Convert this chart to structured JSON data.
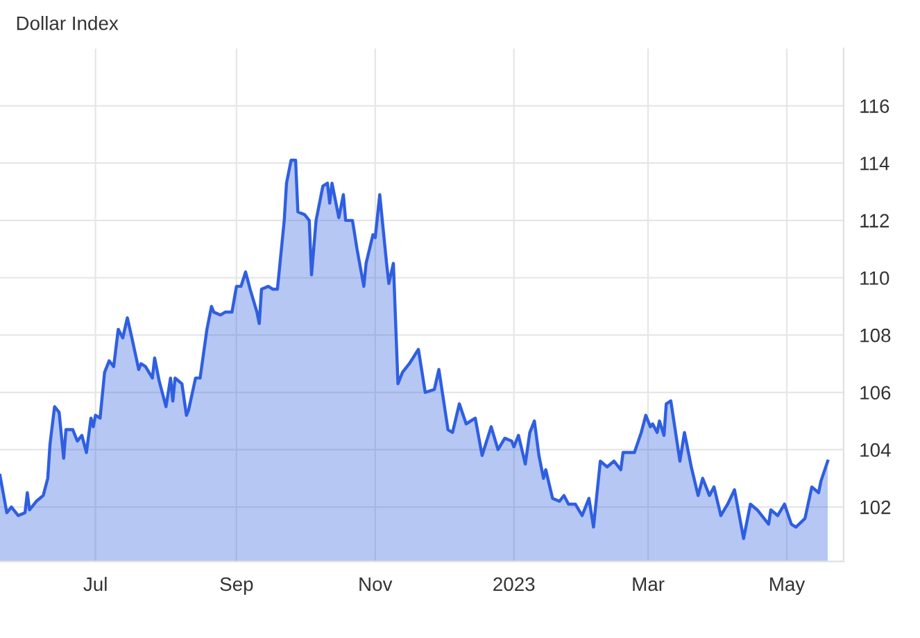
{
  "chart_data": {
    "type": "area",
    "title": "Dollar Index",
    "x": [
      "2022-05-20",
      "2022-05-23",
      "2022-05-25",
      "2022-05-28",
      "2022-05-31",
      "2022-06-01",
      "2022-06-02",
      "2022-06-05",
      "2022-06-08",
      "2022-06-10",
      "2022-06-11",
      "2022-06-13",
      "2022-06-15",
      "2022-06-17",
      "2022-06-18",
      "2022-06-21",
      "2022-06-23",
      "2022-06-25",
      "2022-06-27",
      "2022-06-29",
      "2022-06-30",
      "2022-07-01",
      "2022-07-03",
      "2022-07-05",
      "2022-07-07",
      "2022-07-09",
      "2022-07-11",
      "2022-07-13",
      "2022-07-15",
      "2022-07-17",
      "2022-07-20",
      "2022-07-21",
      "2022-07-23",
      "2022-07-26",
      "2022-07-27",
      "2022-07-29",
      "2022-08-01",
      "2022-08-03",
      "2022-08-04",
      "2022-08-05",
      "2022-08-08",
      "2022-08-10",
      "2022-08-11",
      "2022-08-14",
      "2022-08-16",
      "2022-08-19",
      "2022-08-21",
      "2022-08-22",
      "2022-08-25",
      "2022-08-27",
      "2022-08-30",
      "2022-09-01",
      "2022-09-03",
      "2022-09-05",
      "2022-09-07",
      "2022-09-10",
      "2022-09-11",
      "2022-09-12",
      "2022-09-15",
      "2022-09-17",
      "2022-09-19",
      "2022-09-20",
      "2022-09-22",
      "2022-09-23",
      "2022-09-25",
      "2022-09-27",
      "2022-09-28",
      "2022-10-01",
      "2022-10-03",
      "2022-10-04",
      "2022-10-06",
      "2022-10-09",
      "2022-10-11",
      "2022-10-12",
      "2022-10-13",
      "2022-10-16",
      "2022-10-18",
      "2022-10-19",
      "2022-10-22",
      "2022-10-24",
      "2022-10-27",
      "2022-10-28",
      "2022-10-31",
      "2022-11-01",
      "2022-11-03",
      "2022-11-06",
      "2022-11-07",
      "2022-11-09",
      "2022-11-11",
      "2022-11-13",
      "2022-11-16",
      "2022-11-20",
      "2022-11-23",
      "2022-11-27",
      "2022-11-29",
      "2022-12-03",
      "2022-12-05",
      "2022-12-08",
      "2022-12-11",
      "2022-12-15",
      "2022-12-18",
      "2022-12-22",
      "2022-12-25",
      "2022-12-28",
      "2022-12-31",
      "2023-01-01",
      "2023-01-03",
      "2023-01-06",
      "2023-01-08",
      "2023-01-10",
      "2023-01-12",
      "2023-01-14",
      "2023-01-15",
      "2023-01-18",
      "2023-01-21",
      "2023-01-23",
      "2023-01-25",
      "2023-01-28",
      "2023-01-31",
      "2023-02-03",
      "2023-02-05",
      "2023-02-08",
      "2023-02-11",
      "2023-02-14",
      "2023-02-17",
      "2023-02-18",
      "2023-02-23",
      "2023-02-26",
      "2023-02-28",
      "2023-03-02",
      "2023-03-03",
      "2023-03-05",
      "2023-03-06",
      "2023-03-08",
      "2023-03-09",
      "2023-03-11",
      "2023-03-15",
      "2023-03-17",
      "2023-03-20",
      "2023-03-23",
      "2023-03-25",
      "2023-03-28",
      "2023-03-30",
      "2023-04-02",
      "2023-04-05",
      "2023-04-08",
      "2023-04-12",
      "2023-04-15",
      "2023-04-18",
      "2023-04-23",
      "2023-04-24",
      "2023-04-27",
      "2023-04-30",
      "2023-05-03",
      "2023-05-05",
      "2023-05-09",
      "2023-05-12",
      "2023-05-15",
      "2023-05-16",
      "2023-05-19"
    ],
    "series": [
      {
        "color": "#2f5fe0",
        "values": [
          103.1,
          101.8,
          102.0,
          101.7,
          101.8,
          102.5,
          101.9,
          102.2,
          102.4,
          103.0,
          104.2,
          105.5,
          105.3,
          103.7,
          104.7,
          104.7,
          104.3,
          104.5,
          103.9,
          105.1,
          104.8,
          105.2,
          105.1,
          106.7,
          107.1,
          106.9,
          108.2,
          107.9,
          108.6,
          107.9,
          106.8,
          107.0,
          106.9,
          106.5,
          107.2,
          106.4,
          105.5,
          106.5,
          105.7,
          106.5,
          106.3,
          105.2,
          105.4,
          106.5,
          106.5,
          108.2,
          109.0,
          108.8,
          108.7,
          108.8,
          108.8,
          109.7,
          109.7,
          110.2,
          109.6,
          108.8,
          108.4,
          109.6,
          109.7,
          109.6,
          109.6,
          110.4,
          112.0,
          113.3,
          114.1,
          114.1,
          112.3,
          112.2,
          112.0,
          110.1,
          112.0,
          113.2,
          113.3,
          112.6,
          113.3,
          112.1,
          112.9,
          112.0,
          112.0,
          111.0,
          109.7,
          110.5,
          111.5,
          111.4,
          112.9,
          110.5,
          109.8,
          110.5,
          106.3,
          106.7,
          107.0,
          107.5,
          106.0,
          106.1,
          106.8,
          104.7,
          104.6,
          105.6,
          104.9,
          105.1,
          103.8,
          104.8,
          104.0,
          104.4,
          104.3,
          104.1,
          104.5,
          103.5,
          104.6,
          105.0,
          103.8,
          103.0,
          103.3,
          102.3,
          102.2,
          102.4,
          102.1,
          102.1,
          101.7,
          102.3,
          101.3,
          103.6,
          103.4,
          103.6,
          103.3,
          103.9,
          103.9,
          104.6,
          105.2,
          104.8,
          104.9,
          104.6,
          105.0,
          104.5,
          105.6,
          105.7,
          103.6,
          104.6,
          103.4,
          102.4,
          103.0,
          102.4,
          102.7,
          101.7,
          102.1,
          102.6,
          100.9,
          102.1,
          101.9,
          101.4,
          101.9,
          101.7,
          102.1,
          101.4,
          101.3,
          101.6,
          102.7,
          102.5,
          102.9,
          103.6
        ]
      }
    ],
    "xlim": [
      "2022-05-20",
      "2023-05-26"
    ],
    "xticks": [
      {
        "value": "2022-07-01",
        "label": "Jul"
      },
      {
        "value": "2022-09-01",
        "label": "Sep"
      },
      {
        "value": "2022-11-01",
        "label": "Nov"
      },
      {
        "value": "2023-01-01",
        "label": "2023"
      },
      {
        "value": "2023-03-01",
        "label": "Mar"
      },
      {
        "value": "2023-05-01",
        "label": "May"
      }
    ],
    "ylim": [
      100.1,
      118
    ],
    "yticks": [
      102,
      104,
      106,
      108,
      110,
      112,
      114,
      116
    ],
    "grid": true
  }
}
